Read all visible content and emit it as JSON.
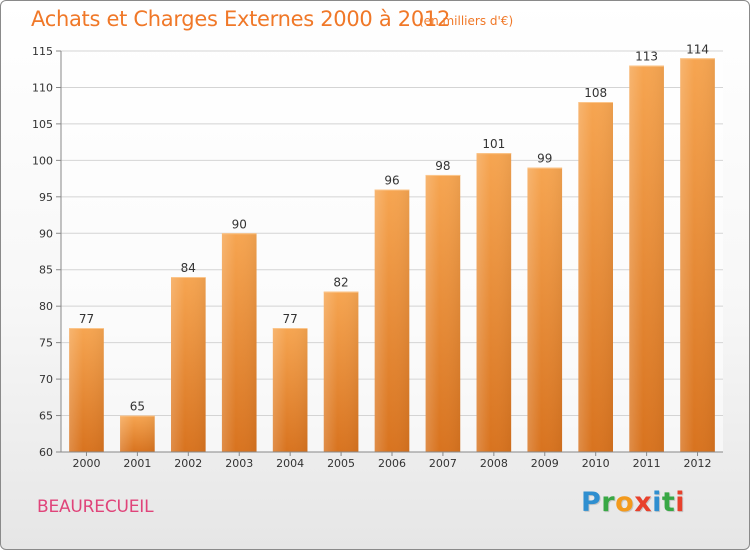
{
  "title": "Achats et Charges Externes 2000 à 2012",
  "subtitle": "(en milliers d'€)",
  "place": "BEAURECUEIL",
  "logo": {
    "letters": [
      "P",
      "r",
      "o",
      "x",
      "i",
      "t",
      "i"
    ],
    "colors": [
      "#2f8fd0",
      "#39a845",
      "#f39a1c",
      "#e8412c",
      "#2f8fd0",
      "#39a845",
      "#e8412c"
    ]
  },
  "colors": {
    "bar_top": "#f6a551",
    "bar_bottom": "#d8731f",
    "title": "#f07828",
    "place": "#e0447a"
  },
  "chart_data": {
    "type": "bar",
    "title": "Achats et Charges Externes 2000 à 2012",
    "subtitle": "(en milliers d'€)",
    "xlabel": "",
    "ylabel": "",
    "categories": [
      "2000",
      "2001",
      "2002",
      "2003",
      "2004",
      "2005",
      "2006",
      "2007",
      "2008",
      "2009",
      "2010",
      "2011",
      "2012"
    ],
    "values": [
      77,
      65,
      84,
      90,
      77,
      82,
      96,
      98,
      101,
      99,
      108,
      113,
      114
    ],
    "ylim": [
      60,
      115
    ],
    "yticks": [
      60,
      65,
      70,
      75,
      80,
      85,
      90,
      95,
      100,
      105,
      110,
      115
    ],
    "grid": true,
    "legend": "none"
  }
}
